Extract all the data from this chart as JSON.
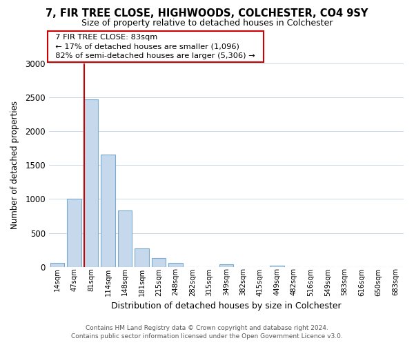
{
  "title": "7, FIR TREE CLOSE, HIGHWOODS, COLCHESTER, CO4 9SY",
  "subtitle": "Size of property relative to detached houses in Colchester",
  "xlabel": "Distribution of detached houses by size in Colchester",
  "ylabel": "Number of detached properties",
  "bar_labels": [
    "14sqm",
    "47sqm",
    "81sqm",
    "114sqm",
    "148sqm",
    "181sqm",
    "215sqm",
    "248sqm",
    "282sqm",
    "315sqm",
    "349sqm",
    "382sqm",
    "415sqm",
    "449sqm",
    "482sqm",
    "516sqm",
    "549sqm",
    "583sqm",
    "616sqm",
    "650sqm",
    "683sqm"
  ],
  "bar_values": [
    55,
    1000,
    2470,
    1660,
    830,
    270,
    130,
    55,
    0,
    0,
    40,
    0,
    0,
    20,
    0,
    0,
    0,
    0,
    0,
    0,
    0
  ],
  "bar_color": "#c5d8ec",
  "bar_edge_color": "#7aabcf",
  "vline_color": "#cc0000",
  "vline_x_idx": 2,
  "annotation_title": "7 FIR TREE CLOSE: 83sqm",
  "annotation_line1": "← 17% of detached houses are smaller (1,096)",
  "annotation_line2": "82% of semi-detached houses are larger (5,306) →",
  "annotation_box_color": "#ffffff",
  "annotation_box_edge": "#cc0000",
  "ylim": [
    0,
    3000
  ],
  "yticks": [
    0,
    500,
    1000,
    1500,
    2000,
    2500,
    3000
  ],
  "footer_line1": "Contains HM Land Registry data © Crown copyright and database right 2024.",
  "footer_line2": "Contains public sector information licensed under the Open Government Licence v3.0.",
  "bg_color": "#ffffff",
  "grid_color": "#c8d8e8"
}
